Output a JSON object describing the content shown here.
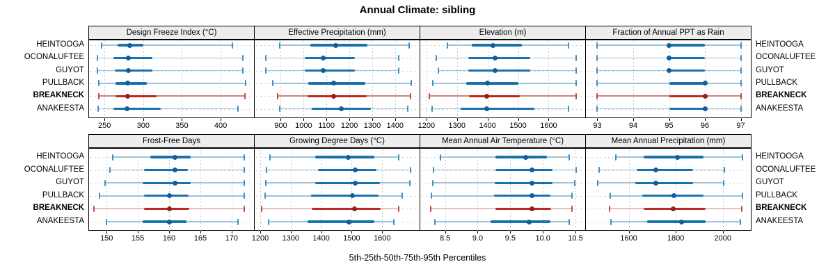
{
  "title": "Annual Climate: sibling",
  "footer": "5th-25th-50th-75th-95th Percentiles",
  "sites": [
    "HEINTOOGA",
    "OCONALUFTEE",
    "GUYOT",
    "PULLBACK",
    "BREAKNECK",
    "ANAKEESTA"
  ],
  "highlight_site": "BREAKNECK",
  "percentile_labels": [
    "5th",
    "25th",
    "50th",
    "75th",
    "95th"
  ],
  "grid_layout": {
    "rows": 2,
    "cols": 4,
    "gridlines": "dotted-vertical-at-ticks",
    "legend": "none"
  },
  "colors": {
    "series": "#1971ae",
    "series_dot": "#0e5f9c",
    "series_whisker": "#9cc3de",
    "series_cap": "#4190c2",
    "highlight": "#b8292c",
    "highlight_dot": "#9c1d20",
    "highlight_whisker": "#d4807f",
    "highlight_cap": "#c04a4a",
    "grid": "#c9c9c9",
    "strip_bg": "#ededed",
    "panel_border": "#000000"
  },
  "chart_data": [
    {
      "type": "dotplot",
      "title": "Design Freeze Index (°C)",
      "xlim": [
        231,
        444
      ],
      "ticks": [
        {
          "value": 250,
          "label": "250"
        },
        {
          "value": 300,
          "label": "300"
        },
        {
          "value": 350,
          "label": "350"
        },
        {
          "value": 400,
          "label": "400"
        }
      ],
      "series": [
        {
          "name": "HEINTOOGA",
          "values": [
            246,
            267,
            283,
            300,
            415
          ]
        },
        {
          "name": "OCONALUFTEE",
          "values": [
            241,
            262,
            281,
            312,
            429
          ]
        },
        {
          "name": "GUYOT",
          "values": [
            241,
            263,
            281,
            312,
            429
          ]
        },
        {
          "name": "PULLBACK",
          "values": [
            243,
            264,
            280,
            305,
            432
          ]
        },
        {
          "name": "BREAKNECK",
          "values": [
            243,
            264,
            280,
            317,
            431
          ]
        },
        {
          "name": "ANAKEESTA",
          "values": [
            242,
            262,
            279,
            323,
            422
          ]
        }
      ]
    },
    {
      "type": "dotplot",
      "title": "Effective Precipitation (mm)",
      "xlim": [
        789,
        1510
      ],
      "ticks": [
        {
          "value": 900,
          "label": "900"
        },
        {
          "value": 1000,
          "label": "1000"
        },
        {
          "value": 1100,
          "label": "1100"
        },
        {
          "value": 1200,
          "label": "1200"
        },
        {
          "value": 1300,
          "label": "1300"
        },
        {
          "value": 1400,
          "label": "1400"
        }
      ],
      "series": [
        {
          "name": "HEINTOOGA",
          "values": [
            895,
            1030,
            1140,
            1280,
            1460
          ]
        },
        {
          "name": "OCONALUFTEE",
          "values": [
            835,
            1005,
            1085,
            1225,
            1415
          ]
        },
        {
          "name": "GUYOT",
          "values": [
            835,
            1005,
            1085,
            1225,
            1415
          ]
        },
        {
          "name": "PULLBACK",
          "values": [
            865,
            1020,
            1130,
            1270,
            1470
          ]
        },
        {
          "name": "BREAKNECK",
          "values": [
            885,
            1018,
            1130,
            1275,
            1468
          ]
        },
        {
          "name": "ANAKEESTA",
          "values": [
            895,
            1035,
            1165,
            1295,
            1455
          ]
        }
      ]
    },
    {
      "type": "dotplot",
      "title": "Elevation (m)",
      "xlim": [
        1182,
        1722
      ],
      "ticks": [
        {
          "value": 1200,
          "label": "1200"
        },
        {
          "value": 1300,
          "label": "1300"
        },
        {
          "value": 1400,
          "label": "1400"
        },
        {
          "value": 1500,
          "label": "1500"
        },
        {
          "value": 1600,
          "label": "1600"
        }
      ],
      "series": [
        {
          "name": "HEINTOOGA",
          "values": [
            1268,
            1349,
            1418,
            1512,
            1664
          ]
        },
        {
          "name": "OCONALUFTEE",
          "values": [
            1232,
            1336,
            1425,
            1539,
            1690
          ]
        },
        {
          "name": "GUYOT",
          "values": [
            1240,
            1336,
            1425,
            1539,
            1690
          ]
        },
        {
          "name": "PULLBACK",
          "values": [
            1220,
            1330,
            1400,
            1500,
            1690
          ]
        },
        {
          "name": "BREAKNECK",
          "values": [
            1210,
            1340,
            1398,
            1505,
            1690
          ]
        },
        {
          "name": "ANAKEESTA",
          "values": [
            1218,
            1311,
            1398,
            1554,
            1664
          ]
        }
      ]
    },
    {
      "type": "dotplot",
      "title": "Fraction of Annual PPT as Rain",
      "xlim": [
        92.7,
        97.3
      ],
      "ticks": [
        {
          "value": 93,
          "label": "93"
        },
        {
          "value": 94,
          "label": "94"
        },
        {
          "value": 95,
          "label": "95"
        },
        {
          "value": 96,
          "label": "96"
        },
        {
          "value": 97,
          "label": "97"
        }
      ],
      "series": [
        {
          "name": "HEINTOOGA",
          "values": [
            93,
            95,
            95,
            96,
            97
          ]
        },
        {
          "name": "OCONALUFTEE",
          "values": [
            93,
            95,
            95,
            96,
            97
          ]
        },
        {
          "name": "GUYOT",
          "values": [
            93,
            95,
            95,
            96,
            97
          ]
        },
        {
          "name": "PULLBACK",
          "values": [
            93,
            95,
            96,
            96,
            97
          ]
        },
        {
          "name": "BREAKNECK",
          "values": [
            93,
            95,
            96,
            96,
            97
          ]
        },
        {
          "name": "ANAKEESTA",
          "values": [
            93,
            95,
            96,
            96,
            97
          ]
        }
      ]
    },
    {
      "type": "dotplot",
      "title": "Frost-Free Days",
      "xlim": [
        147.3,
        173.7
      ],
      "ticks": [
        {
          "value": 150,
          "label": "150"
        },
        {
          "value": 155,
          "label": "155"
        },
        {
          "value": 160,
          "label": "160"
        },
        {
          "value": 165,
          "label": "165"
        },
        {
          "value": 170,
          "label": "170"
        }
      ],
      "series": [
        {
          "name": "HEINTOOGA",
          "values": [
            151,
            157,
            161,
            163.5,
            172
          ]
        },
        {
          "name": "OCONALUFTEE",
          "values": [
            150.5,
            156,
            161,
            163,
            172
          ]
        },
        {
          "name": "GUYOT",
          "values": [
            149.7,
            155.8,
            161,
            163.4,
            172
          ]
        },
        {
          "name": "PULLBACK",
          "values": [
            148.9,
            156,
            160,
            163.1,
            172
          ]
        },
        {
          "name": "BREAKNECK",
          "values": [
            148,
            156,
            160,
            163.2,
            172
          ]
        },
        {
          "name": "ANAKEESTA",
          "values": [
            150,
            155.8,
            160,
            162.8,
            171
          ]
        }
      ]
    },
    {
      "type": "dotplot",
      "title": "Growing Degree Days (°C)",
      "xlim": [
        1184,
        1725
      ],
      "ticks": [
        {
          "value": 1200,
          "label": "1200"
        },
        {
          "value": 1300,
          "label": "1300"
        },
        {
          "value": 1400,
          "label": "1400"
        },
        {
          "value": 1500,
          "label": "1500"
        },
        {
          "value": 1600,
          "label": "1600"
        }
      ],
      "series": [
        {
          "name": "HEINTOOGA",
          "values": [
            1232,
            1380,
            1488,
            1575,
            1654
          ]
        },
        {
          "name": "OCONALUFTEE",
          "values": [
            1220,
            1389,
            1512,
            1582,
            1693
          ]
        },
        {
          "name": "GUYOT",
          "values": [
            1218,
            1380,
            1511,
            1593,
            1690
          ]
        },
        {
          "name": "PULLBACK",
          "values": [
            1216,
            1366,
            1502,
            1589,
            1665
          ]
        },
        {
          "name": "BREAKNECK",
          "values": [
            1205,
            1368,
            1509,
            1595,
            1655
          ]
        },
        {
          "name": "ANAKEESTA",
          "values": [
            1227,
            1355,
            1491,
            1574,
            1639
          ]
        }
      ]
    },
    {
      "type": "dotplot",
      "title": "Mean Annual Air Temperature (°C)",
      "xlim": [
        8.13,
        10.66
      ],
      "ticks": [
        {
          "value": 8.5,
          "label": "8.5"
        },
        {
          "value": 9.0,
          "label": "9.0"
        },
        {
          "value": 9.5,
          "label": "9.5"
        },
        {
          "value": 10.0,
          "label": "10.0"
        },
        {
          "value": 10.5,
          "label": "10.5"
        }
      ],
      "series": [
        {
          "name": "HEINTOOGA",
          "values": [
            8.43,
            9.27,
            9.74,
            10.06,
            10.4
          ]
        },
        {
          "name": "OCONALUFTEE",
          "values": [
            8.32,
            9.27,
            9.83,
            10.15,
            10.51
          ]
        },
        {
          "name": "GUYOT",
          "values": [
            8.31,
            9.26,
            9.83,
            10.15,
            10.49
          ]
        },
        {
          "name": "PULLBACK",
          "values": [
            8.29,
            9.25,
            9.83,
            10.12,
            10.45
          ]
        },
        {
          "name": "BREAKNECK",
          "values": [
            8.28,
            9.27,
            9.83,
            10.13,
            10.45
          ]
        },
        {
          "name": "ANAKEESTA",
          "values": [
            8.34,
            9.2,
            9.79,
            10.12,
            10.4
          ]
        }
      ]
    },
    {
      "type": "dotplot",
      "title": "Mean Annual Precipitation (mm)",
      "xlim": [
        1421,
        2122
      ],
      "ticks": [
        {
          "value": 1600,
          "label": "1600"
        },
        {
          "value": 1800,
          "label": "1800"
        },
        {
          "value": 2000,
          "label": "2000"
        }
      ],
      "series": [
        {
          "name": "HEINTOOGA",
          "values": [
            1544,
            1663,
            1806,
            1918,
            2085
          ]
        },
        {
          "name": "OCONALUFTEE",
          "values": [
            1474,
            1635,
            1715,
            1874,
            2006
          ]
        },
        {
          "name": "GUYOT",
          "values": [
            1468,
            1628,
            1715,
            1874,
            2004
          ]
        },
        {
          "name": "PULLBACK",
          "values": [
            1521,
            1658,
            1791,
            1918,
            2085
          ]
        },
        {
          "name": "BREAKNECK",
          "values": [
            1518,
            1663,
            1788,
            1927,
            2082
          ]
        },
        {
          "name": "ANAKEESTA",
          "values": [
            1524,
            1677,
            1824,
            1927,
            2076
          ]
        }
      ]
    }
  ]
}
